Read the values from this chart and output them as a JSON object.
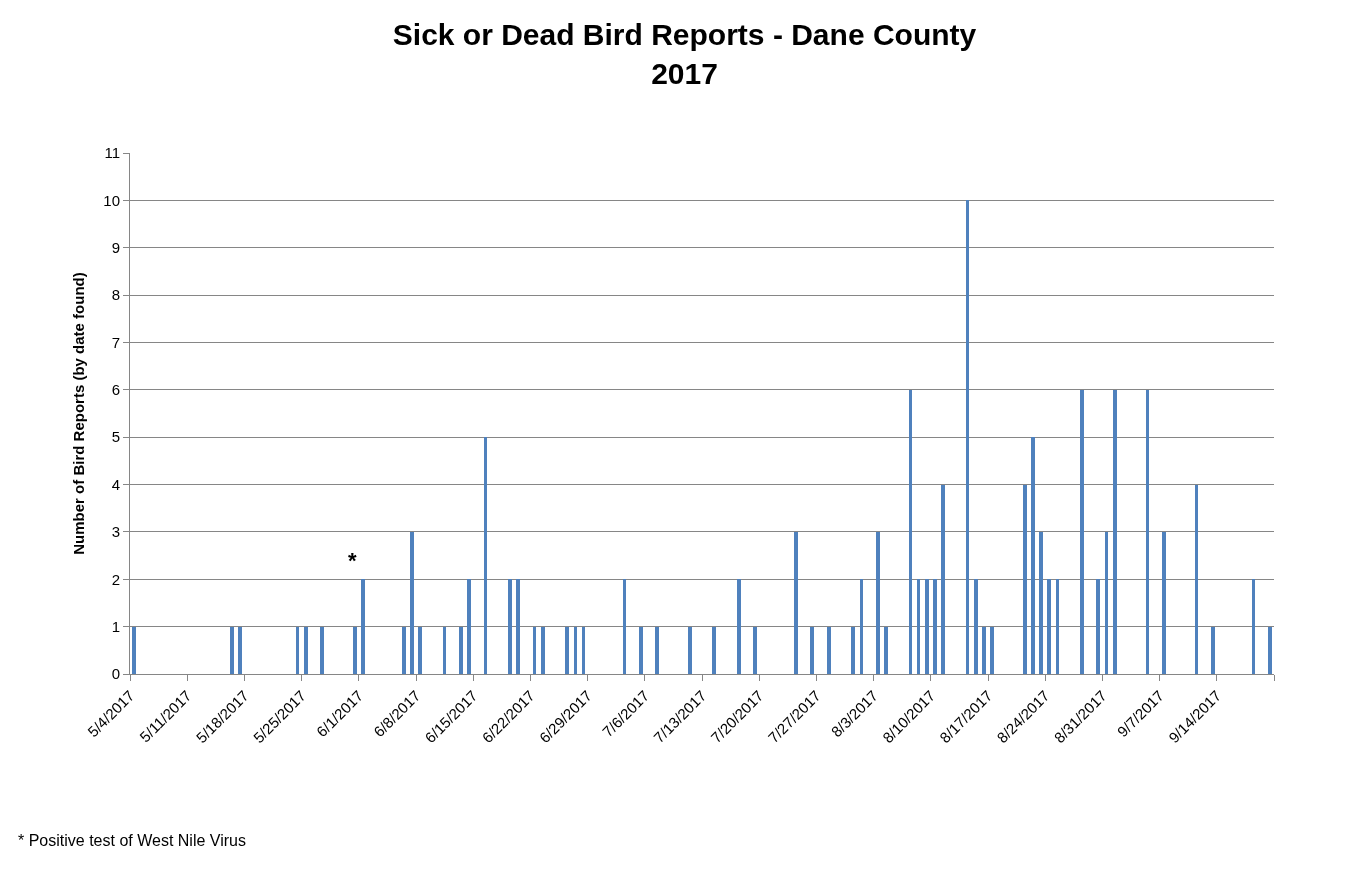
{
  "chart_data": {
    "type": "bar",
    "title": "Sick or Dead Bird Reports - Dane County\n2017",
    "ylabel": "Number of Bird Reports (by date found)",
    "x": [
      "2017-05-04",
      "2017-05-16",
      "2017-05-17",
      "2017-05-24",
      "2017-05-25",
      "2017-05-27",
      "2017-05-31",
      "2017-06-01",
      "2017-06-06",
      "2017-06-07",
      "2017-06-08",
      "2017-06-11",
      "2017-06-13",
      "2017-06-14",
      "2017-06-16",
      "2017-06-19",
      "2017-06-20",
      "2017-06-22",
      "2017-06-23",
      "2017-06-26",
      "2017-06-27",
      "2017-06-28",
      "2017-07-03",
      "2017-07-05",
      "2017-07-07",
      "2017-07-11",
      "2017-07-14",
      "2017-07-17",
      "2017-07-19",
      "2017-07-24",
      "2017-07-26",
      "2017-07-28",
      "2017-07-31",
      "2017-08-01",
      "2017-08-03",
      "2017-08-04",
      "2017-08-07",
      "2017-08-08",
      "2017-08-09",
      "2017-08-10",
      "2017-08-11",
      "2017-08-14",
      "2017-08-15",
      "2017-08-16",
      "2017-08-17",
      "2017-08-21",
      "2017-08-22",
      "2017-08-23",
      "2017-08-24",
      "2017-08-25",
      "2017-08-28",
      "2017-08-30",
      "2017-08-31",
      "2017-09-01",
      "2017-09-05",
      "2017-09-07",
      "2017-09-11",
      "2017-09-13",
      "2017-09-18",
      "2017-09-20"
    ],
    "values": [
      1,
      1,
      1,
      1,
      1,
      1,
      1,
      2,
      1,
      3,
      1,
      1,
      1,
      2,
      5,
      2,
      2,
      1,
      1,
      1,
      1,
      1,
      2,
      1,
      1,
      1,
      1,
      2,
      1,
      3,
      1,
      1,
      1,
      2,
      3,
      1,
      6,
      2,
      2,
      2,
      4,
      10,
      2,
      1,
      1,
      4,
      5,
      3,
      2,
      2,
      6,
      2,
      3,
      6,
      6,
      3,
      4,
      1,
      2,
      1
    ],
    "color": "#4f81bd",
    "xlim": [
      "2017-05-04",
      "2017-09-21"
    ],
    "xticks": [
      {
        "value": "2017-05-04",
        "label": "5/4/2017"
      },
      {
        "value": "2017-05-11",
        "label": "5/11/2017"
      },
      {
        "value": "2017-05-18",
        "label": "5/18/2017"
      },
      {
        "value": "2017-05-25",
        "label": "5/25/2017"
      },
      {
        "value": "2017-06-01",
        "label": "6/1/2017"
      },
      {
        "value": "2017-06-08",
        "label": "6/8/2017"
      },
      {
        "value": "2017-06-15",
        "label": "6/15/2017"
      },
      {
        "value": "2017-06-22",
        "label": "6/22/2017"
      },
      {
        "value": "2017-06-29",
        "label": "6/29/2017"
      },
      {
        "value": "2017-07-06",
        "label": "7/6/2017"
      },
      {
        "value": "2017-07-13",
        "label": "7/13/2017"
      },
      {
        "value": "2017-07-20",
        "label": "7/20/2017"
      },
      {
        "value": "2017-07-27",
        "label": "7/27/2017"
      },
      {
        "value": "2017-08-03",
        "label": "8/3/2017"
      },
      {
        "value": "2017-08-10",
        "label": "8/10/2017"
      },
      {
        "value": "2017-08-17",
        "label": "8/17/2017"
      },
      {
        "value": "2017-08-24",
        "label": "8/24/2017"
      },
      {
        "value": "2017-08-31",
        "label": "8/31/2017"
      },
      {
        "value": "2017-09-07",
        "label": "9/7/2017"
      },
      {
        "value": "2017-09-14",
        "label": "9/14/2017"
      },
      {
        "value": "2017-09-21",
        "label": null
      }
    ],
    "ylim": [
      0,
      11
    ],
    "yticks": [
      0,
      1,
      2,
      3,
      4,
      5,
      6,
      7,
      8,
      9,
      10,
      11
    ],
    "grid": "y",
    "legend": false,
    "annotations": [
      {
        "text": "*",
        "x": "2017-06-01",
        "y": 2
      },
      "* Positive test of West Nile Virus"
    ]
  }
}
